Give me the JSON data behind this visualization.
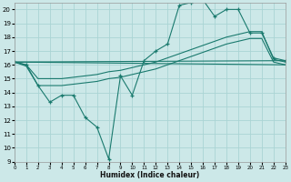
{
  "xlabel": "Humidex (Indice chaleur)",
  "bg_color": "#cce8e8",
  "grid_color": "#aad4d4",
  "line_color": "#1a7a6e",
  "xlim": [
    0,
    23
  ],
  "ylim": [
    9,
    20.5
  ],
  "yticks": [
    9,
    10,
    11,
    12,
    13,
    14,
    15,
    16,
    17,
    18,
    19,
    20
  ],
  "xticks": [
    0,
    1,
    2,
    3,
    4,
    5,
    6,
    7,
    8,
    9,
    10,
    11,
    12,
    13,
    14,
    15,
    16,
    17,
    18,
    19,
    20,
    21,
    22,
    23
  ],
  "series_jagged": {
    "x": [
      0,
      1,
      2,
      3,
      4,
      5,
      6,
      7,
      8,
      9,
      10,
      11,
      12,
      13,
      14,
      15,
      16,
      17,
      18,
      19,
      20,
      21,
      22,
      23
    ],
    "y": [
      16.2,
      16.0,
      14.5,
      13.3,
      13.8,
      13.8,
      12.2,
      11.5,
      9.2,
      15.2,
      13.8,
      16.3,
      17.0,
      17.5,
      20.3,
      20.5,
      20.7,
      19.5,
      20.0,
      20.0,
      18.3,
      18.3,
      16.5,
      16.3
    ]
  },
  "series_upper": {
    "x": [
      0,
      23
    ],
    "y": [
      16.2,
      16.3
    ]
  },
  "series_lower": {
    "x": [
      0,
      23
    ],
    "y": [
      16.2,
      16.0
    ]
  },
  "series_mid_upper": {
    "x": [
      0,
      1,
      2,
      3,
      4,
      5,
      6,
      7,
      8,
      9,
      10,
      11,
      12,
      13,
      14,
      15,
      16,
      17,
      18,
      19,
      20,
      21,
      22,
      23
    ],
    "y": [
      16.2,
      16.0,
      15.0,
      15.0,
      15.0,
      15.1,
      15.2,
      15.3,
      15.5,
      15.6,
      15.8,
      16.0,
      16.2,
      16.5,
      16.8,
      17.1,
      17.4,
      17.7,
      18.0,
      18.2,
      18.4,
      18.4,
      16.4,
      16.2
    ]
  },
  "series_mid_lower": {
    "x": [
      0,
      1,
      2,
      3,
      4,
      5,
      6,
      7,
      8,
      9,
      10,
      11,
      12,
      13,
      14,
      15,
      16,
      17,
      18,
      19,
      20,
      21,
      22,
      23
    ],
    "y": [
      16.2,
      15.9,
      14.5,
      14.5,
      14.5,
      14.6,
      14.7,
      14.8,
      15.0,
      15.1,
      15.3,
      15.5,
      15.7,
      16.0,
      16.3,
      16.6,
      16.9,
      17.2,
      17.5,
      17.7,
      17.9,
      17.9,
      16.2,
      16.0
    ]
  }
}
